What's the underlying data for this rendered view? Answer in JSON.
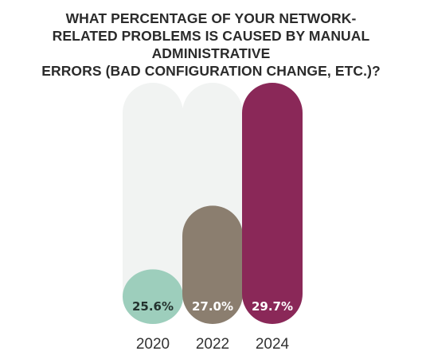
{
  "title_lines": [
    "WHAT PERCENTAGE OF YOUR NETWORK-",
    "RELATED PROBLEMS IS CAUSED BY MANUAL ADMINISTRATIVE",
    "ERRORS (BAD CONFIGURATION CHANGE, ETC.)?"
  ],
  "colors": {
    "track": "#f1f3f2",
    "text": "#2b2b2b",
    "label_dark": "#24332f",
    "label_light": "#ffffff"
  },
  "chart_data": {
    "type": "bar",
    "categories": [
      "2020",
      "2022",
      "2024"
    ],
    "values": [
      25.6,
      27.0,
      29.7
    ],
    "data_labels": [
      "25.6%",
      "27.0%",
      "29.7%"
    ],
    "bar_colors": [
      "#9dcebc",
      "#8b7e6f",
      "#8a2858"
    ],
    "label_colors": [
      "#24332f",
      "#ffffff",
      "#ffffff"
    ],
    "title": "WHAT PERCENTAGE OF YOUR NETWORK-RELATED PROBLEMS IS CAUSED BY MANUAL ADMINISTRATIVE ERRORS (BAD CONFIGURATION CHANGE, ETC.)?",
    "xlabel": "",
    "ylabel": "",
    "ylim": [
      24.4,
      29.7
    ],
    "grid": false,
    "legend": "none"
  }
}
